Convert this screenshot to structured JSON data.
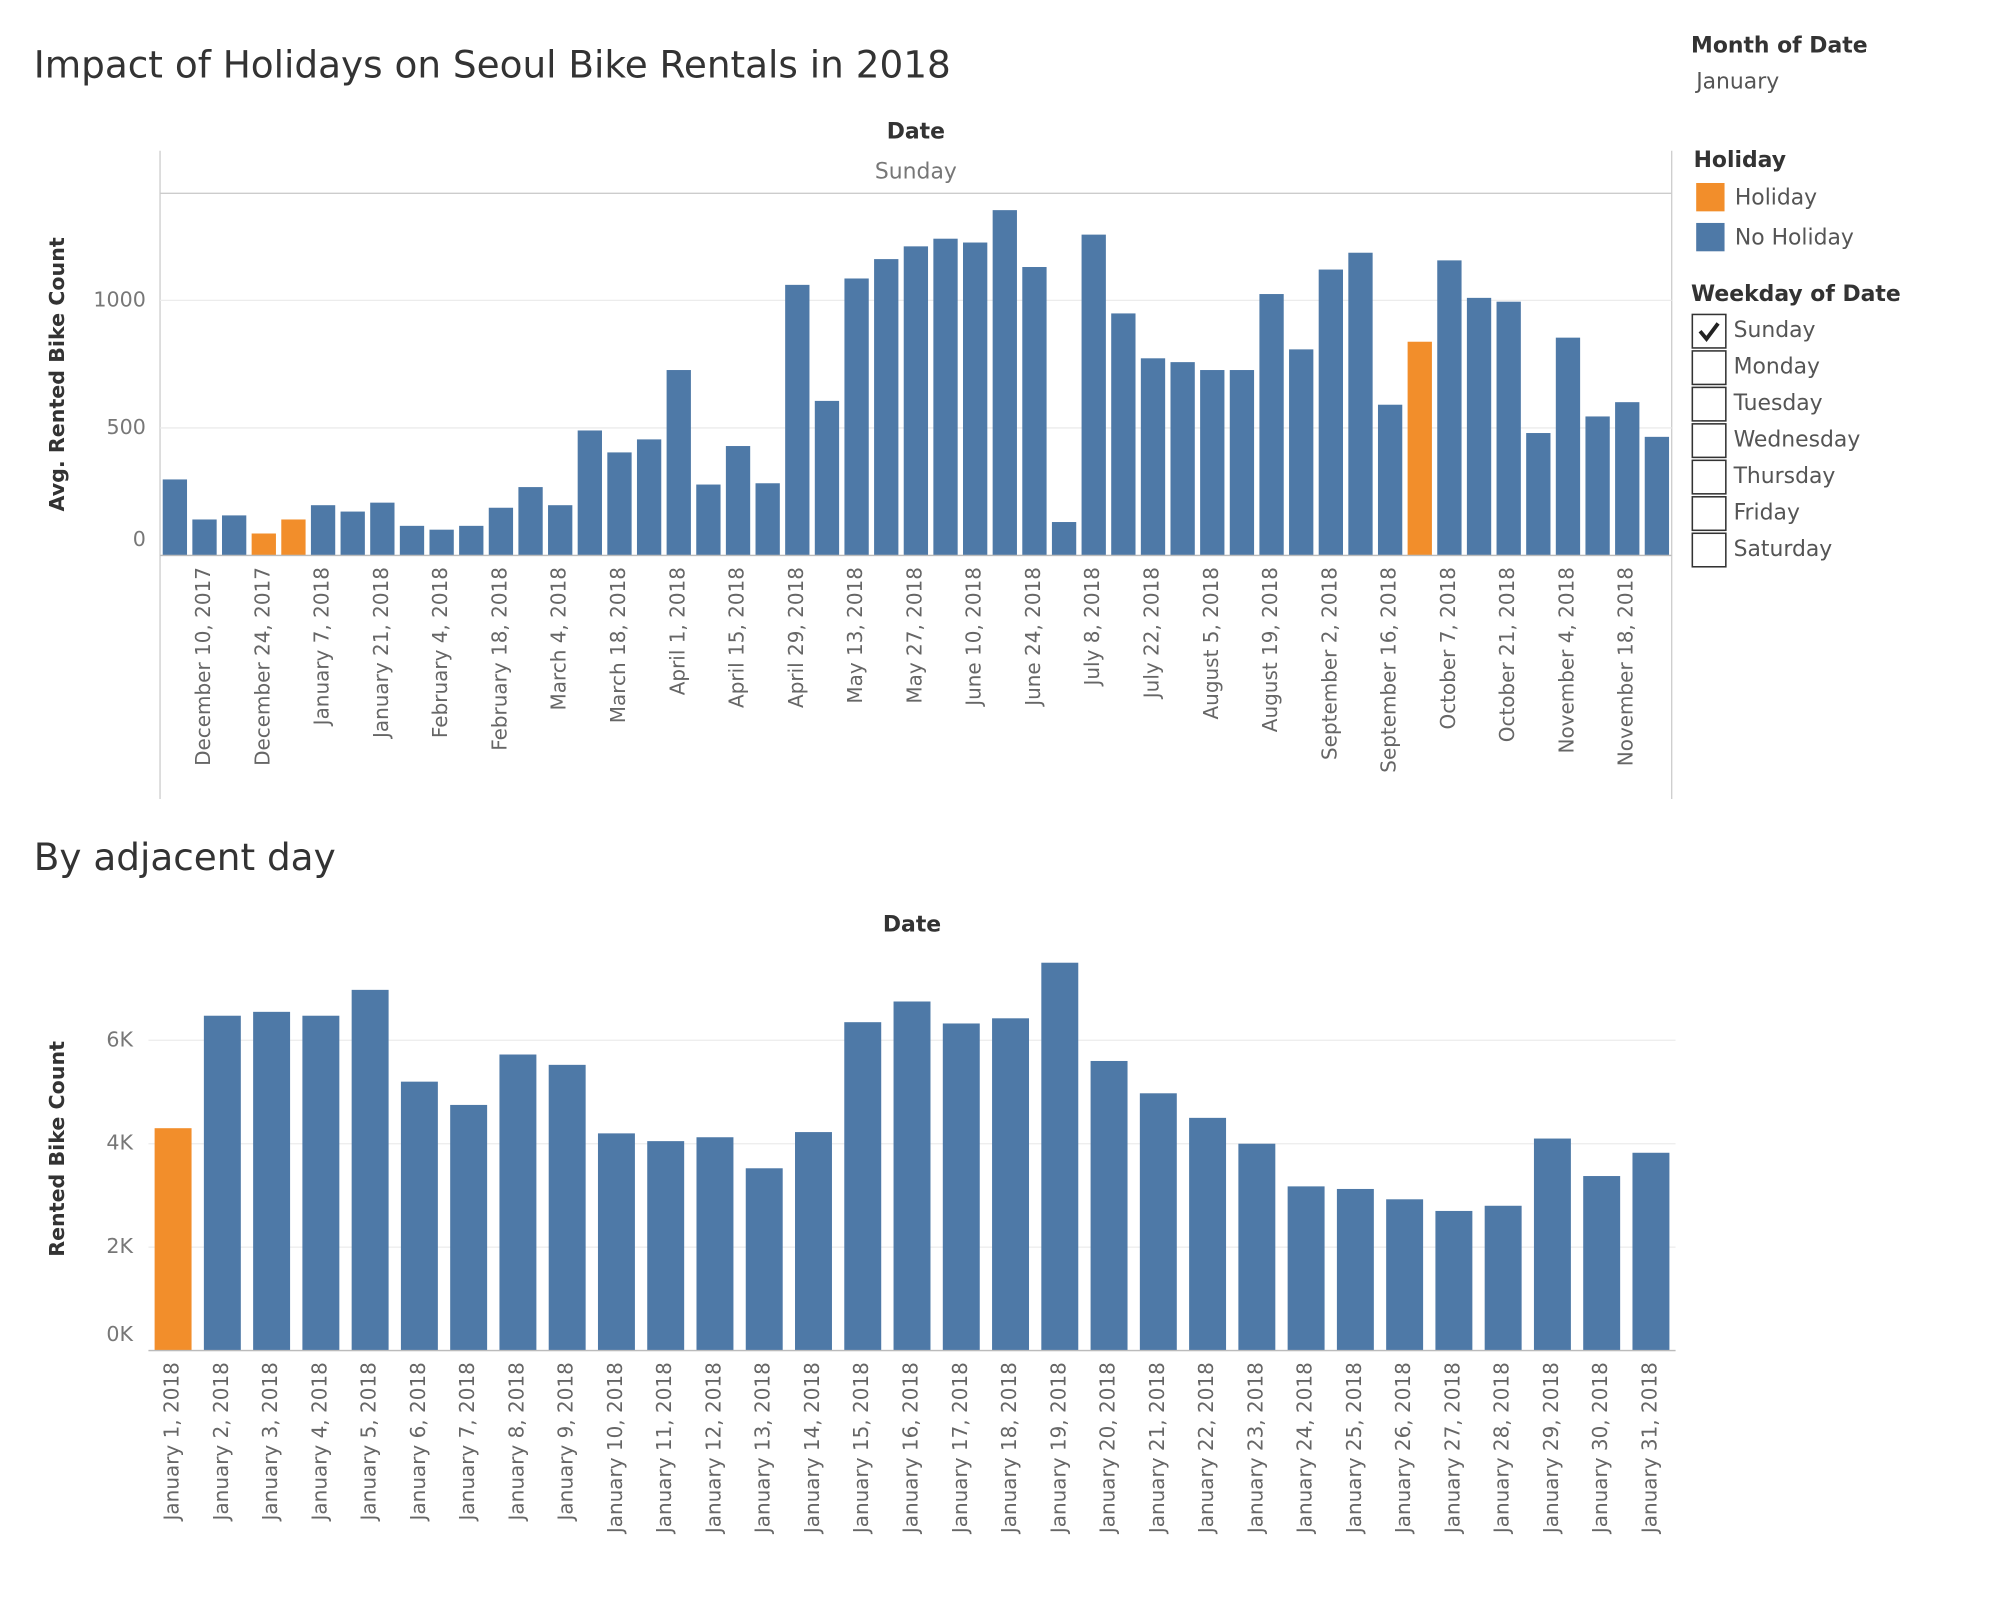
{
  "title": "Impact of Holidays on Seoul Bike Rentals in 2018",
  "filters": {
    "month": {
      "label": "Month of Date",
      "value": "January"
    },
    "weekday": {
      "label": "Weekday of Date",
      "options": [
        "Sunday",
        "Monday",
        "Tuesday",
        "Wednesday",
        "Thursday",
        "Friday",
        "Saturday"
      ],
      "selected": "Sunday"
    }
  },
  "legend_title": "Holiday",
  "chart_data": [
    {
      "type": "bar",
      "header": "Date",
      "panel": "Sunday",
      "y_label": "Avg. Rented Bike Count",
      "categories": [
        null,
        "December 10, 2017",
        null,
        "December 24, 2017",
        null,
        "January 7, 2018",
        null,
        "January 21, 2018",
        null,
        "February 4, 2018",
        null,
        "February 18, 2018",
        null,
        "March 4, 2018",
        null,
        "March 18, 2018",
        null,
        "April 1, 2018",
        null,
        "April 15, 2018",
        null,
        "April 29, 2018",
        null,
        "May 13, 2018",
        null,
        "May 27, 2018",
        null,
        "June 10, 2018",
        null,
        "June 24, 2018",
        null,
        "July 8, 2018",
        null,
        "July 22, 2018",
        null,
        "August 5, 2018",
        null,
        "August 19, 2018",
        null,
        "September 2, 2018",
        null,
        "September 16, 2018",
        null,
        "October 7, 2018",
        null,
        "October 21, 2018",
        null,
        "November 4, 2018",
        null,
        "November 18, 2018",
        null
      ],
      "series": [
        {
          "name": "Holiday",
          "color": "#f28e2b",
          "values": [
            null,
            null,
            null,
            86,
            141,
            null,
            null,
            null,
            null,
            null,
            null,
            null,
            null,
            null,
            null,
            null,
            null,
            null,
            null,
            null,
            null,
            null,
            null,
            null,
            null,
            null,
            null,
            null,
            null,
            null,
            null,
            null,
            null,
            null,
            null,
            null,
            null,
            null,
            null,
            null,
            null,
            null,
            838,
            null,
            null,
            null,
            null,
            null,
            null,
            null,
            null
          ]
        },
        {
          "name": "No Holiday",
          "color": "#4e79a7",
          "values": [
            298,
            141,
            157,
            null,
            null,
            197,
            172,
            207,
            116,
            101,
            116,
            187,
            268,
            197,
            490,
            404,
            455,
            727,
            278,
            429,
            283,
            1061,
            606,
            1086,
            1162,
            1212,
            1242,
            1227,
            1354,
            1131,
            131,
            1258,
            949,
            773,
            758,
            727,
            727,
            1025,
            808,
            1121,
            1187,
            591,
            null,
            1157,
            1010,
            995,
            480,
            854,
            545,
            601,
            465
          ]
        }
      ],
      "ylim": [
        0,
        1420
      ],
      "yticks": [
        0,
        500,
        1000
      ],
      "grid": true
    },
    {
      "type": "bar",
      "title": "By adjacent day",
      "header": "Date",
      "y_label": "Rented Bike Count",
      "categories": [
        "January 1, 2018",
        "January 2, 2018",
        "January 3, 2018",
        "January 4, 2018",
        "January 5, 2018",
        "January 6, 2018",
        "January 7, 2018",
        "January 8, 2018",
        "January 9, 2018",
        "January 10, 2018",
        "January 11, 2018",
        "January 12, 2018",
        "January 13, 2018",
        "January 14, 2018",
        "January 15, 2018",
        "January 16, 2018",
        "January 17, 2018",
        "January 18, 2018",
        "January 19, 2018",
        "January 20, 2018",
        "January 21, 2018",
        "January 22, 2018",
        "January 23, 2018",
        "January 24, 2018",
        "January 25, 2018",
        "January 26, 2018",
        "January 27, 2018",
        "January 28, 2018",
        "January 29, 2018",
        "January 30, 2018",
        "January 31, 2018"
      ],
      "series": [
        {
          "name": "Holiday",
          "color": "#f28e2b",
          "values": [
            4300,
            null,
            null,
            null,
            null,
            null,
            null,
            null,
            null,
            null,
            null,
            null,
            null,
            null,
            null,
            null,
            null,
            null,
            null,
            null,
            null,
            null,
            null,
            null,
            null,
            null,
            null,
            null,
            null,
            null,
            null
          ]
        },
        {
          "name": "No Holiday",
          "color": "#4e79a7",
          "values": [
            null,
            6475,
            6550,
            6475,
            6975,
            5200,
            4750,
            5725,
            5525,
            4200,
            4050,
            4125,
            3525,
            4225,
            6350,
            6750,
            6325,
            6425,
            7500,
            5600,
            4975,
            4500,
            4000,
            3175,
            3125,
            2925,
            2700,
            2800,
            4100,
            3375,
            3825
          ]
        }
      ],
      "ylim": [
        0,
        7800
      ],
      "yticks": [
        {
          "value": 0,
          "label": "0K"
        },
        {
          "value": 2000,
          "label": "2K"
        },
        {
          "value": 4000,
          "label": "4K"
        },
        {
          "value": 6000,
          "label": "6K"
        }
      ],
      "grid": true
    }
  ]
}
